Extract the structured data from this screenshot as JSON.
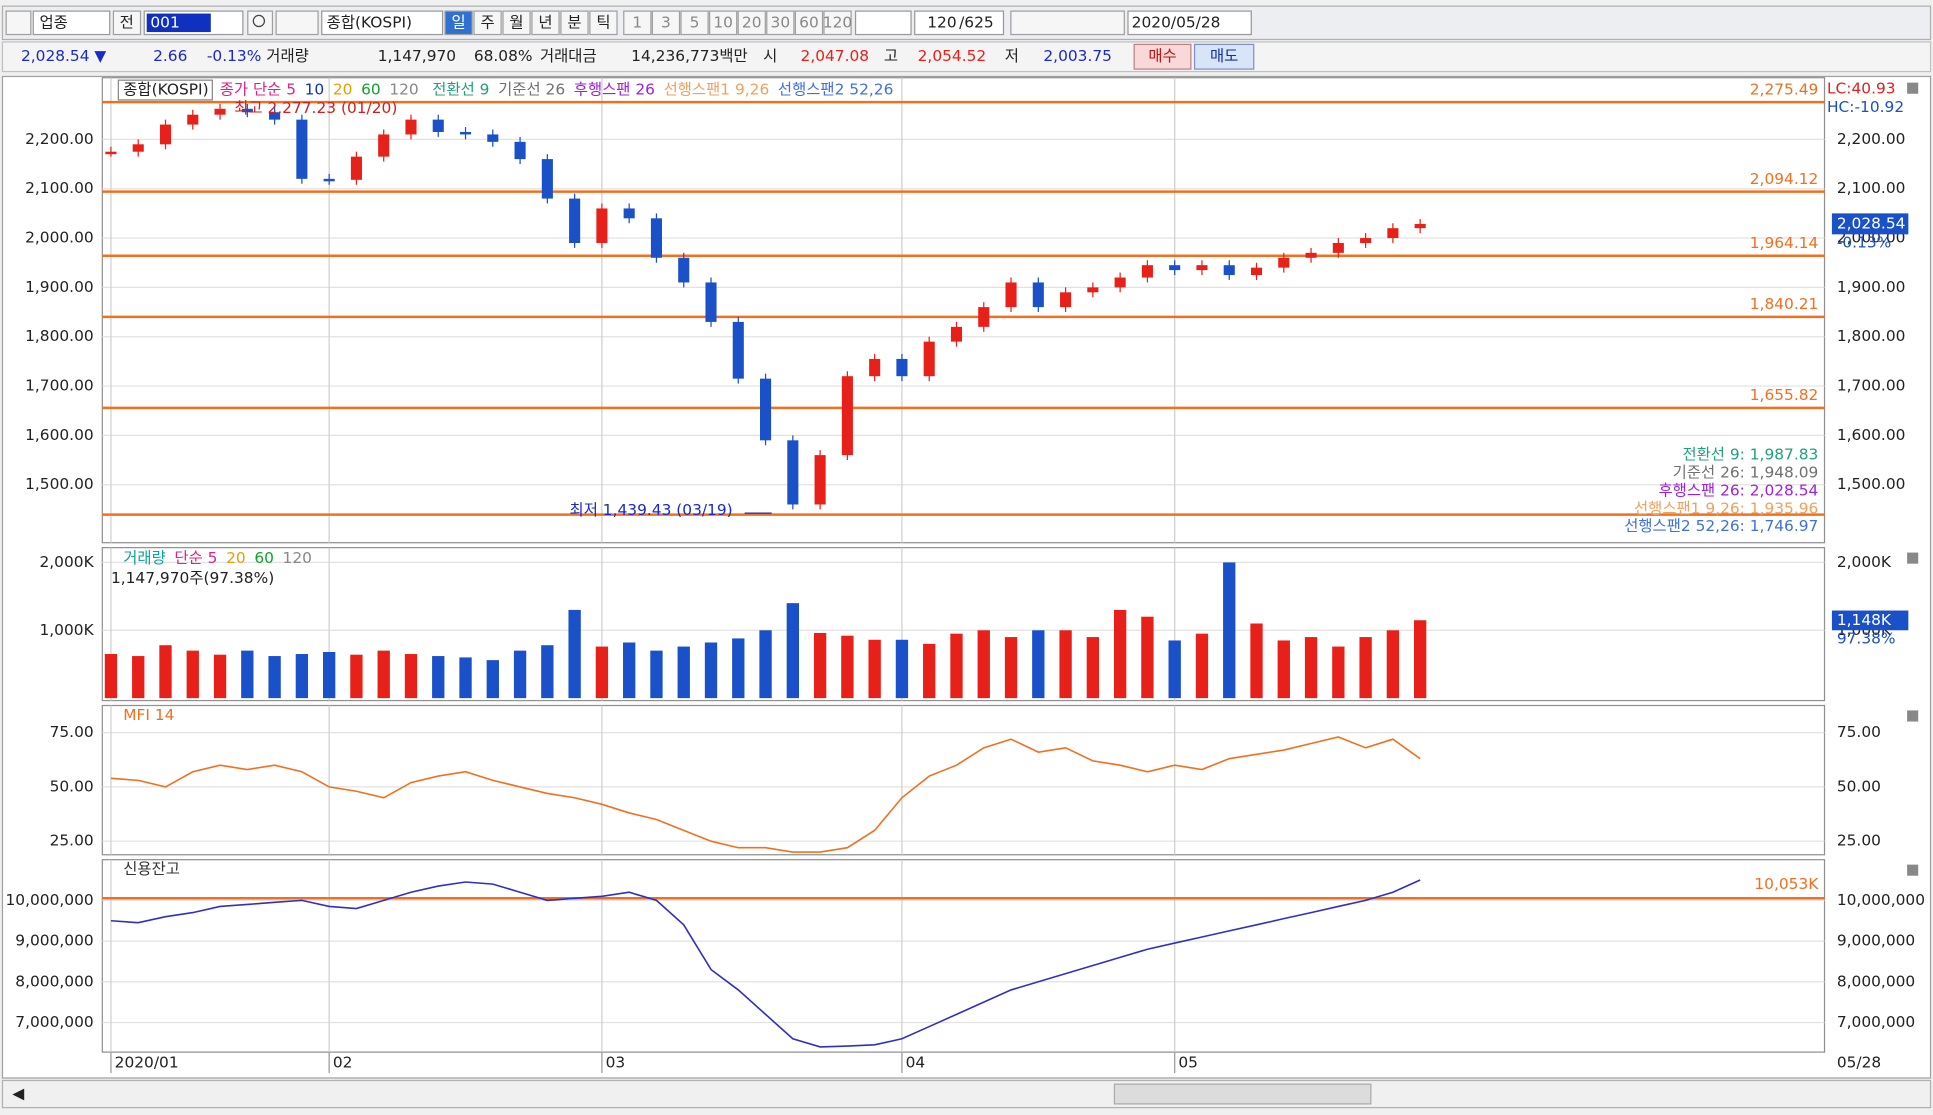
{
  "toolbar": {
    "market": "업종",
    "prev": "전",
    "code": "001",
    "name": "종합(KOSPI)",
    "periods": [
      "일",
      "주",
      "월",
      "년",
      "분",
      "틱"
    ],
    "intervals": [
      "1",
      "3",
      "5",
      "10",
      "20",
      "30",
      "60",
      "120"
    ],
    "count": "120",
    "total": "/625",
    "date": "2020/05/28"
  },
  "quote": {
    "price": "2,028.54 ▼",
    "change": "2.66",
    "change_pct": "-0.13%",
    "volume_label": "거래량",
    "volume": "1,147,970",
    "volume_pct": "68.08%",
    "amount_label": "거래대금",
    "amount": "14,236,773백만",
    "open_label": "시",
    "open": "2,047.08",
    "high_label": "고",
    "high": "2,054.52",
    "low_label": "저",
    "low": "2,003.75",
    "buy": "매수",
    "sell": "매도"
  },
  "chart_data": [
    {
      "type": "candlestick",
      "title": "종합(KOSPI)",
      "up_color": "#e8201a",
      "down_color": "#1a50c8",
      "ma_legend": [
        {
          "name": "종가 단순 5",
          "color": "#e0208a"
        },
        {
          "name": "10",
          "color": "#1030c0"
        },
        {
          "name": "20",
          "color": "#e8a000"
        },
        {
          "name": "60",
          "color": "#10a030"
        },
        {
          "name": "120",
          "color": "#888888"
        }
      ],
      "ichimoku_legend": [
        {
          "name": "전환선 9",
          "color": "#20a080"
        },
        {
          "name": "기준선 26",
          "color": "#707070"
        },
        {
          "name": "후행스팬 26",
          "color": "#a020e0"
        },
        {
          "name": "선행스팬1 9,26",
          "color": "#f0a060"
        },
        {
          "name": "선행스팬2 52,26",
          "color": "#4070e0"
        }
      ],
      "values": [
        2175,
        2190,
        2230,
        2250,
        2262,
        2255,
        2240,
        2120,
        2118,
        2165,
        2210,
        2240,
        2215,
        2210,
        2195,
        2160,
        2080,
        1990,
        2060,
        2040,
        1960,
        1910,
        1830,
        1715,
        1590,
        1460,
        1560,
        1720,
        1755,
        1720,
        1790,
        1820,
        1860,
        1910,
        1860,
        1890,
        1900,
        1920,
        1945,
        1935,
        1945,
        1925,
        1940,
        1960,
        1970,
        1990,
        2000,
        2020,
        2028.54
      ],
      "xticks": [
        {
          "value": 0,
          "label": "2020/01"
        },
        {
          "value": 8,
          "label": "02"
        },
        {
          "value": 18,
          "label": "03"
        },
        {
          "value": 29,
          "label": "04"
        },
        {
          "value": 39,
          "label": "05"
        }
      ],
      "xlim": [
        0,
        48
      ],
      "last_date": "05/28",
      "ylim": [
        1382.5,
        2325
      ],
      "yticks": [
        {
          "value": 1500,
          "label": "1,500.00"
        },
        {
          "value": 1600,
          "label": "1,600.00"
        },
        {
          "value": 1700,
          "label": "1,700.00"
        },
        {
          "value": 1800,
          "label": "1,800.00"
        },
        {
          "value": 1900,
          "label": "1,900.00"
        },
        {
          "value": 2000,
          "label": "2,000.00"
        },
        {
          "value": 2100,
          "label": "2,100.00"
        },
        {
          "value": 2200,
          "label": "2,200.00"
        }
      ],
      "levels": [
        {
          "value": 2275.49,
          "label": "2,275.49"
        },
        {
          "value": 2094.12,
          "label": "2,094.12"
        },
        {
          "value": 1964.14,
          "label": "1,964.14"
        },
        {
          "value": 1840.21,
          "label": "1,840.21"
        },
        {
          "value": 1655.82,
          "label": "1,655.82"
        }
      ],
      "level_color": "#f07020",
      "high_note": "최고 2,277.23 (01/20)",
      "low_note": "최저 1,439.43 (03/19)",
      "low_level": 1439.43,
      "lc": "LC:40.93",
      "hc": "HC:-10.92",
      "last_label": "2,028.54",
      "last_change": "-0.13%",
      "readouts": [
        "전환선 9: 1,987.83",
        "기준선 26: 1,948.09",
        "후행스팬 26: 2,028.54",
        "선행스팬1 9,26: 1,935.96",
        "선행스팬2 52,26: 1,746.97"
      ]
    },
    {
      "type": "bar",
      "title": "거래량",
      "legend": [
        {
          "name": "단순 5",
          "color": "#e0208a"
        },
        {
          "name": "20",
          "color": "#e8a000"
        },
        {
          "name": "60",
          "color": "#10a030"
        },
        {
          "name": "120",
          "color": "#888888"
        }
      ],
      "note": "1,147,970주(97.38%)",
      "values": [
        650,
        620,
        780,
        700,
        640,
        700,
        620,
        650,
        680,
        640,
        700,
        650,
        620,
        600,
        560,
        700,
        780,
        1300,
        760,
        820,
        700,
        760,
        820,
        880,
        1000,
        1400,
        960,
        920,
        860,
        860,
        800,
        950,
        1000,
        900,
        1000,
        1000,
        900,
        1300,
        1200,
        850,
        950,
        2000,
        1100,
        850,
        900,
        760,
        900,
        1000,
        1148
      ],
      "ylim": [
        -36,
        2218
      ],
      "yticks": [
        {
          "value": 1000,
          "label": "1,000K"
        },
        {
          "value": 2000,
          "label": "2,000K"
        }
      ],
      "last_label": "1,148K",
      "last_pct": "97.38%"
    },
    {
      "type": "line",
      "title": "MFI 14",
      "color": "#f07020",
      "values": [
        54,
        53,
        50,
        57,
        60,
        58,
        60,
        57,
        50,
        48,
        45,
        52,
        55,
        57,
        53,
        50,
        47,
        45,
        42,
        38,
        35,
        30,
        25,
        22,
        22,
        20,
        20,
        22,
        30,
        45,
        55,
        60,
        68,
        72,
        66,
        68,
        62,
        60,
        57,
        60,
        58,
        63,
        65,
        67,
        70,
        73,
        68,
        72,
        63
      ],
      "ylim": [
        18.75,
        87.5
      ],
      "yticks": [
        {
          "value": 25,
          "label": "25.00"
        },
        {
          "value": 50,
          "label": "50.00"
        },
        {
          "value": 75,
          "label": "75.00"
        }
      ]
    },
    {
      "type": "line",
      "title": "신용잔고",
      "color": "#3030c0",
      "values": [
        9500000,
        9450000,
        9600000,
        9700000,
        9850000,
        9900000,
        9950000,
        10000000,
        9850000,
        9800000,
        10000000,
        10200000,
        10350000,
        10450000,
        10400000,
        10200000,
        10000000,
        10050000,
        10100000,
        10200000,
        10000000,
        9400000,
        8300000,
        7800000,
        7200000,
        6600000,
        6400000,
        6420000,
        6450000,
        6600000,
        6900000,
        7200000,
        7500000,
        7800000,
        8000000,
        8200000,
        8400000,
        8600000,
        8800000,
        8950000,
        9100000,
        9250000,
        9400000,
        9550000,
        9700000,
        9850000,
        10000000,
        10200000,
        10500000
      ],
      "ylim": [
        6272727,
        11000000
      ],
      "yticks": [
        {
          "value": 7000000,
          "label": "7,000,000"
        },
        {
          "value": 8000000,
          "label": "8,000,000"
        },
        {
          "value": 9000000,
          "label": "9,000,000"
        },
        {
          "value": 10000000,
          "label": "10,000,000"
        }
      ],
      "level": {
        "value": 10053000,
        "label": "10,053K"
      },
      "level_color": "#f07020"
    }
  ]
}
